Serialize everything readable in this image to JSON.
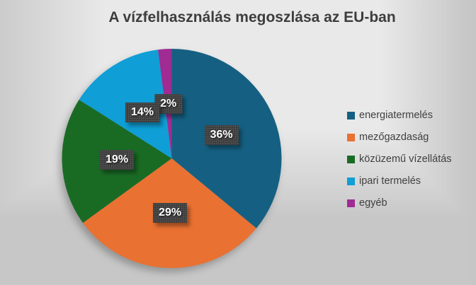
{
  "chart_data": {
    "type": "pie",
    "title": "A vízfelhasználás megoszlása az EU-ban",
    "categories": [
      "energiatermelés",
      "mezőgazdaság",
      "közüzemű vízellátás",
      "ipari termelés",
      "egyéb"
    ],
    "values": [
      36,
      29,
      19,
      14,
      2
    ],
    "unit": "%",
    "data_labels": [
      "36%",
      "29%",
      "19%",
      "14%",
      "2%"
    ],
    "colors": [
      "#156082",
      "#E97132",
      "#196B24",
      "#0F9ED5",
      "#A02B93"
    ],
    "start_angle_deg": 0,
    "direction": "clockwise",
    "legend_position": "right",
    "grid": false
  },
  "style": {
    "title_color": "#3D3D3D",
    "legend_text_color": "#404040",
    "data_label_box_bg": "#3B3B3B",
    "data_label_text_color": "#FFFFFF",
    "background_light": "#F2F2F2",
    "background_dark": "#C7C7C7"
  }
}
